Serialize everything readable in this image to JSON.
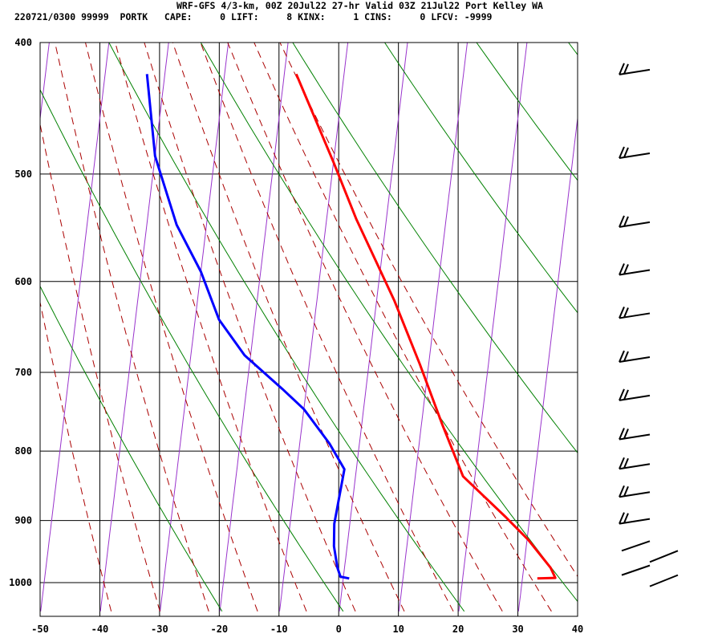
{
  "header": {
    "title": "WRF-GFS 4/3-km, 00Z 20Jul22 27-hr Valid 03Z 21Jul22 Port Kelley WA",
    "stats": "220721/0300 99999  PORTK   CAPE:     0 LIFT:     8 KINX:     1 CINS:     0 LFCV: -9999"
  },
  "chart_data": {
    "type": "line",
    "subtype": "skew-T log-P sounding",
    "title": "WRF-GFS 4/3-km, 00Z 20Jul22 27-hr Valid 03Z 21Jul22 Port Kelley WA",
    "xlabel": "",
    "ylabel": "",
    "x_range": [
      -50,
      40
    ],
    "y_range": [
      1040,
      400
    ],
    "y_scale": "log",
    "x_ticks": [
      -50,
      -40,
      -30,
      -20,
      -10,
      0,
      10,
      20,
      30,
      40
    ],
    "y_ticks": [
      400,
      500,
      600,
      700,
      800,
      900,
      1000
    ],
    "grid": true,
    "background_lines": {
      "isotherms_skewed": "purple",
      "dry_adiabats": "green",
      "moist_adiabats": "dark red dashed"
    },
    "series": [
      {
        "role": "temperature",
        "color": "#ff0000",
        "points": [
          {
            "t": 32.5,
            "p": 993
          },
          {
            "t": 35.5,
            "p": 992
          },
          {
            "t": 34.5,
            "p": 975
          },
          {
            "t": 30.2,
            "p": 930
          },
          {
            "t": 26.0,
            "p": 895
          },
          {
            "t": 18.0,
            "p": 835
          },
          {
            "t": 13.5,
            "p": 765
          },
          {
            "t": 8.5,
            "p": 690
          },
          {
            "t": 3.0,
            "p": 620
          },
          {
            "t": -5.0,
            "p": 540
          },
          {
            "t": -10.0,
            "p": 490
          },
          {
            "t": -18.0,
            "p": 422
          }
        ]
      },
      {
        "role": "dewpoint",
        "color": "#0000ff",
        "points": [
          {
            "t": 1.0,
            "p": 993
          },
          {
            "t": -0.5,
            "p": 990
          },
          {
            "t": -1.2,
            "p": 975
          },
          {
            "t": -2.2,
            "p": 940
          },
          {
            "t": -2.6,
            "p": 905
          },
          {
            "t": -2.0,
            "p": 825
          },
          {
            "t": -5.0,
            "p": 790
          },
          {
            "t": -10.0,
            "p": 745
          },
          {
            "t": -14.0,
            "p": 720
          },
          {
            "t": -21.0,
            "p": 680
          },
          {
            "t": -26.0,
            "p": 640
          },
          {
            "t": -30.0,
            "p": 590
          },
          {
            "t": -35.0,
            "p": 545
          },
          {
            "t": -40.0,
            "p": 485
          },
          {
            "t": -43.0,
            "p": 422
          }
        ]
      }
    ],
    "wind_barbs": [
      {
        "p": 420,
        "kind": "barb"
      },
      {
        "p": 484,
        "kind": "barb"
      },
      {
        "p": 544,
        "kind": "barb"
      },
      {
        "p": 590,
        "kind": "barb"
      },
      {
        "p": 635,
        "kind": "barb"
      },
      {
        "p": 684,
        "kind": "barb"
      },
      {
        "p": 730,
        "kind": "barb"
      },
      {
        "p": 780,
        "kind": "barb"
      },
      {
        "p": 820,
        "kind": "barb"
      },
      {
        "p": 860,
        "kind": "barb"
      },
      {
        "p": 900,
        "kind": "barb"
      },
      {
        "p": 950,
        "kind": "barb"
      },
      {
        "p": 990,
        "kind": "barb"
      }
    ]
  }
}
